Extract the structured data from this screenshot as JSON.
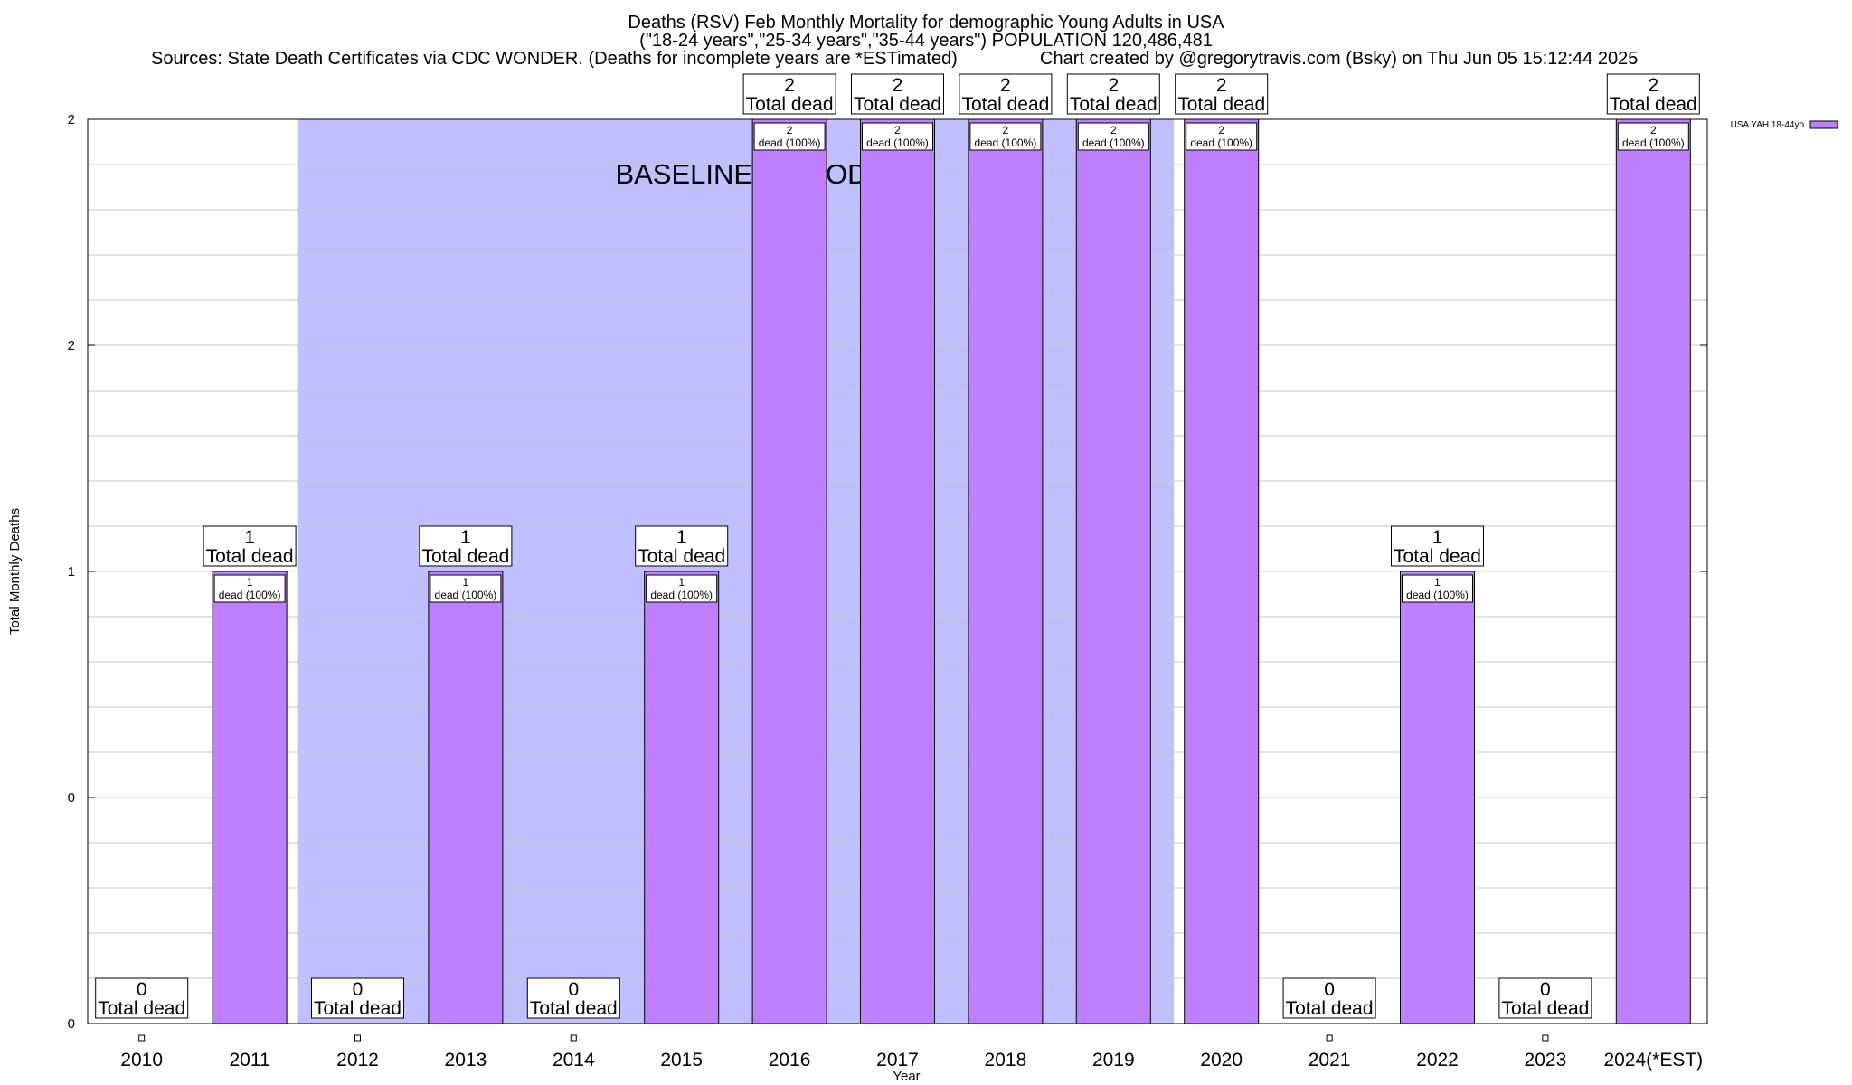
{
  "header": {
    "title_line1": "Deaths (RSV) Feb Monthly Mortality for demographic Young Adults in USA",
    "title_line2": "(\"18-24 years\",\"25-34 years\",\"35-44 years\") POPULATION 120,486,481",
    "sources": "Sources: State Death Certificates via CDC WONDER. (Deaths for incomplete years are *ESTimated)",
    "credit": "Chart created by @gregorytravis.com (Bsky) on Thu Jun 05 15:12:44 2025"
  },
  "chart_data": {
    "type": "bar",
    "categories": [
      "2010",
      "2011",
      "2012",
      "2013",
      "2014",
      "2015",
      "2016",
      "2017",
      "2018",
      "2019",
      "2020",
      "2021",
      "2022",
      "2023",
      "2024(*EST)"
    ],
    "series": [
      {
        "name": "USA YAH 18-44yo",
        "values": [
          0,
          1,
          0,
          1,
          0,
          1,
          2,
          2,
          2,
          2,
          2,
          0,
          1,
          0,
          2
        ],
        "color": "#bf80ff"
      }
    ],
    "xlabel": "Year",
    "ylabel": "Total Monthly Deaths",
    "ylim": [
      0,
      2
    ],
    "y_tick_labels": [
      "0",
      "0",
      "1",
      "2",
      "2"
    ],
    "total_label_suffix": "Total dead",
    "bar_label_suffix": "dead (100%)",
    "baseline_label": "BASELINE PERIOD",
    "baseline_range": [
      "2012",
      "2019"
    ],
    "baseline_color": "#c0c0ff",
    "grid": true,
    "legend_position": "top-right"
  }
}
